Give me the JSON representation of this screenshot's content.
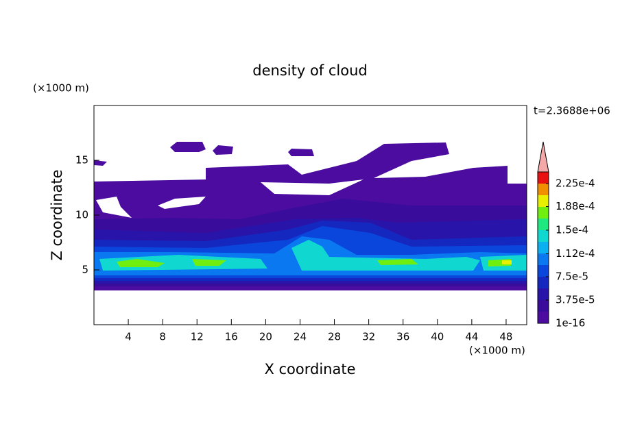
{
  "chart_data": {
    "type": "contour",
    "title": "density of cloud",
    "xlabel": "X coordinate",
    "ylabel": "Z coordinate",
    "xunit": "(×1000 m)",
    "yunit": "(×1000 m)",
    "annotation": "t=2.3688e+06",
    "xlim": [
      0,
      50.4
    ],
    "ylim": [
      0,
      20
    ],
    "xticks": [
      4,
      8,
      12,
      16,
      20,
      24,
      28,
      32,
      36,
      40,
      44,
      48
    ],
    "yticks": [
      5,
      10,
      15
    ],
    "clim": [
      1e-16,
      0.00024375
    ],
    "cticks": [
      {
        "value": 1e-16,
        "label": "1e-16"
      },
      {
        "value": 3.75e-05,
        "label": "3.75e-5"
      },
      {
        "value": 7.5e-05,
        "label": "7.5e-5"
      },
      {
        "value": 0.000112,
        "label": "1.12e-4"
      },
      {
        "value": 0.00015,
        "label": "1.5e-4"
      },
      {
        "value": 0.000188,
        "label": "1.88e-4"
      },
      {
        "value": 0.000225,
        "label": "2.25e-4"
      }
    ],
    "colors": [
      "#4c0ca0",
      "#3a0c9c",
      "#2814a8",
      "#1428c0",
      "#0a46dc",
      "#0a78f0",
      "#0ab0f0",
      "#10d8d0",
      "#20e880",
      "#70ee10",
      "#e8f000",
      "#f09000",
      "#e81010"
    ],
    "extend_color": "#f4a8a8"
  }
}
